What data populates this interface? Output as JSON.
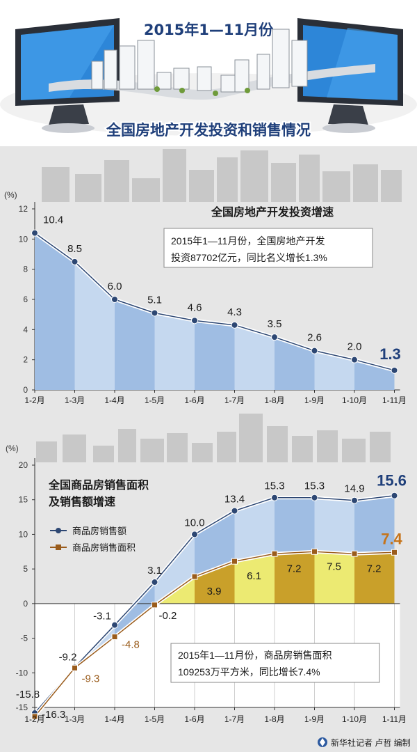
{
  "header": {
    "date_title": "2015年1—11月份",
    "main_title": "全国房地产开发投资和销售情况"
  },
  "chart_data": [
    {
      "type": "area",
      "title": "全国房地产开发投资增速",
      "ylabel": "(%)",
      "ylim": [
        0,
        12
      ],
      "yticks": [
        0,
        2,
        4,
        6,
        8,
        10,
        12
      ],
      "categories": [
        "1-2月",
        "1-3月",
        "1-4月",
        "1-5月",
        "1-6月",
        "1-7月",
        "1-8月",
        "1-9月",
        "1-10月",
        "1-11月"
      ],
      "series": [
        {
          "values": [
            10.4,
            8.5,
            6.0,
            5.1,
            4.6,
            4.3,
            3.5,
            2.6,
            2.0,
            1.3
          ]
        }
      ],
      "data_labels": [
        "10.4",
        "8.5",
        "6.0",
        "5.1",
        "4.6",
        "4.3",
        "3.5",
        "2.6",
        "2.0",
        "1.3"
      ],
      "note_lines": [
        "2015年1—11月份，全国房地产开发",
        "投资87702亿元，同比名义增长1.3%"
      ],
      "colors": {
        "band_dark": "#9fbde3",
        "band_light": "#c5d8ef",
        "marker": "#2d4773"
      }
    },
    {
      "type": "area",
      "title_lines": [
        "全国商品房销售面积",
        "及销售额增速"
      ],
      "ylabel": "(%)",
      "ylim": [
        -15,
        20
      ],
      "yticks": [
        -15,
        -10,
        -5,
        0,
        5,
        10,
        15,
        20
      ],
      "categories": [
        "1-2月",
        "1-3月",
        "1-4月",
        "1-5月",
        "1-6月",
        "1-7月",
        "1-8月",
        "1-9月",
        "1-10月",
        "1-11月"
      ],
      "series": [
        {
          "name": "商品房销售额",
          "values": [
            -15.8,
            -9.2,
            -3.1,
            3.1,
            10.0,
            13.4,
            15.3,
            15.3,
            14.9,
            15.6
          ],
          "color": "#2d4773"
        },
        {
          "name": "商品房销售面积",
          "values": [
            -16.3,
            -9.3,
            -4.8,
            -0.2,
            3.9,
            6.1,
            7.2,
            7.5,
            7.2,
            7.4
          ],
          "color": "#9a5c1c"
        }
      ],
      "labels_amount": [
        "-15.8",
        "-9.2",
        "-3.1",
        "3.1",
        "10.0",
        "13.4",
        "15.3",
        "15.3",
        "14.9",
        "15.6"
      ],
      "labels_area": [
        "-16.3",
        "-9.3",
        "-4.8",
        "-0.2",
        "3.9",
        "6.1",
        "7.2",
        "7.5",
        "7.2",
        "7.4"
      ],
      "note_lines": [
        "2015年1—11月份，商品房销售面积",
        "109253万平方米，同比增长7.4%"
      ],
      "colors": {
        "blue_dark": "#9fbde3",
        "blue_light": "#c5d8ef",
        "yellow_dark": "#c9a02a",
        "yellow_light": "#ecea72"
      }
    }
  ],
  "footer": {
    "credit": "新华社记者 卢哲 编制"
  }
}
